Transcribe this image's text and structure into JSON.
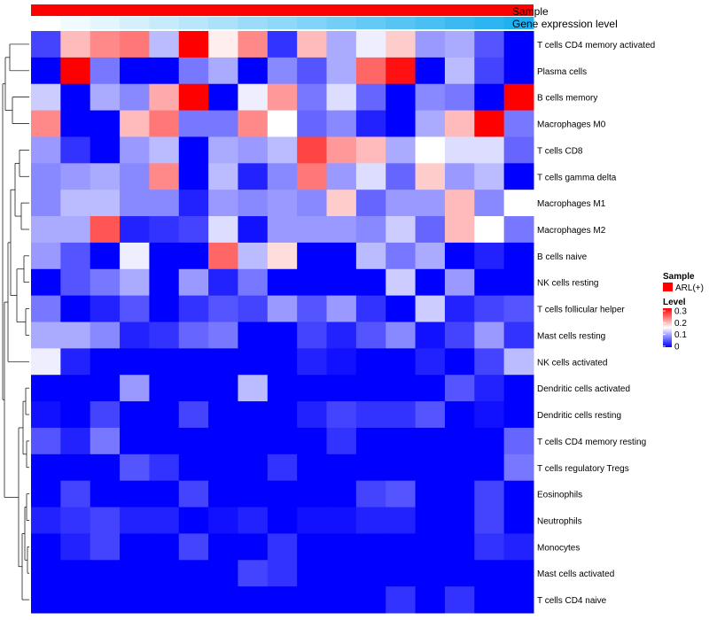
{
  "chart_data": {
    "type": "heatmap",
    "annotation_tracks": [
      {
        "name": "Sample",
        "color": "#ff0000"
      },
      {
        "name": "Gene expression level",
        "values": [
          0.0,
          0.05,
          0.1,
          0.15,
          0.2,
          0.25,
          0.3,
          0.35,
          0.4,
          0.45,
          0.5,
          0.55,
          0.6,
          0.65,
          0.7,
          0.75,
          0.8
        ],
        "color_low": "#ffffff",
        "color_high": "#1fb0f0"
      }
    ],
    "rows": [
      "T cells CD4 memory activated",
      "Plasma cells",
      "B cells memory",
      "Macrophages M0",
      "T cells CD8",
      "T cells gamma delta",
      "Macrophages M1",
      "Macrophages M2",
      "B cells naive",
      "NK cells resting",
      "T cells follicular helper",
      "Mast cells resting",
      "NK cells activated",
      "Dendritic cells activated",
      "Dendritic cells resting",
      "T cells CD4 memory resting",
      "T cells regulatory  Tregs",
      "Eosinophils",
      "Neutrophils",
      "Monocytes",
      "Mast cells activated",
      "T cells CD4 naive"
    ],
    "values": [
      [
        0.04,
        0.19,
        0.22,
        0.23,
        0.11,
        0.3,
        0.16,
        0.22,
        0.03,
        0.19,
        0.1,
        0.14,
        0.18,
        0.09,
        0.1,
        0.05,
        0.0
      ],
      [
        0.0,
        0.3,
        0.07,
        0.0,
        0.0,
        0.07,
        0.1,
        0.0,
        0.08,
        0.05,
        0.1,
        0.24,
        0.29,
        0.0,
        0.11,
        0.04,
        0.0
      ],
      [
        0.12,
        0.0,
        0.1,
        0.08,
        0.2,
        0.3,
        0.0,
        0.14,
        0.21,
        0.07,
        0.13,
        0.06,
        0.0,
        0.08,
        0.07,
        0.0,
        0.3
      ],
      [
        0.22,
        0.0,
        0.0,
        0.19,
        0.23,
        0.07,
        0.07,
        0.22,
        0.15,
        0.06,
        0.08,
        0.02,
        0.0,
        0.1,
        0.19,
        0.3,
        0.07
      ],
      [
        0.09,
        0.03,
        0.0,
        0.09,
        0.11,
        0.0,
        0.1,
        0.09,
        0.11,
        0.26,
        0.21,
        0.19,
        0.1,
        0.15,
        0.13,
        0.13,
        0.06
      ],
      [
        0.08,
        0.09,
        0.1,
        0.08,
        0.22,
        0.0,
        0.11,
        0.02,
        0.08,
        0.23,
        0.09,
        0.13,
        0.06,
        0.18,
        0.09,
        0.11,
        0.0
      ],
      [
        0.08,
        0.11,
        0.11,
        0.08,
        0.08,
        0.02,
        0.09,
        0.08,
        0.09,
        0.08,
        0.18,
        0.06,
        0.09,
        0.09,
        0.19,
        0.08,
        0.15
      ],
      [
        0.1,
        0.1,
        0.25,
        0.02,
        0.03,
        0.04,
        0.13,
        0.01,
        0.09,
        0.09,
        0.09,
        0.08,
        0.12,
        0.06,
        0.19,
        0.15,
        0.07
      ],
      [
        0.09,
        0.05,
        0.0,
        0.14,
        0.0,
        0.0,
        0.24,
        0.11,
        0.17,
        0.0,
        0.0,
        0.11,
        0.07,
        0.1,
        0.0,
        0.02,
        0.0
      ],
      [
        0.0,
        0.05,
        0.07,
        0.1,
        0.0,
        0.09,
        0.02,
        0.07,
        0.0,
        0.0,
        0.0,
        0.0,
        0.12,
        0.0,
        0.09,
        0.0,
        0.0
      ],
      [
        0.07,
        0.0,
        0.02,
        0.05,
        0.0,
        0.03,
        0.05,
        0.04,
        0.09,
        0.05,
        0.09,
        0.03,
        0.0,
        0.12,
        0.02,
        0.04,
        0.05
      ],
      [
        0.1,
        0.1,
        0.08,
        0.02,
        0.03,
        0.06,
        0.07,
        0.0,
        0.0,
        0.04,
        0.02,
        0.05,
        0.08,
        0.01,
        0.04,
        0.09,
        0.03
      ],
      [
        0.14,
        0.02,
        0.0,
        0.0,
        0.0,
        0.0,
        0.0,
        0.0,
        0.0,
        0.02,
        0.01,
        0.0,
        0.0,
        0.02,
        0.0,
        0.04,
        0.11
      ],
      [
        0.0,
        0.0,
        0.0,
        0.09,
        0.0,
        0.0,
        0.0,
        0.11,
        0.0,
        0.0,
        0.0,
        0.0,
        0.0,
        0.0,
        0.05,
        0.02,
        0.0
      ],
      [
        0.01,
        0.0,
        0.04,
        0.0,
        0.0,
        0.04,
        0.0,
        0.0,
        0.0,
        0.02,
        0.04,
        0.03,
        0.03,
        0.05,
        0.0,
        0.01,
        0.0
      ],
      [
        0.05,
        0.02,
        0.07,
        0.0,
        0.0,
        0.0,
        0.0,
        0.0,
        0.0,
        0.0,
        0.03,
        0.0,
        0.0,
        0.0,
        0.0,
        0.0,
        0.06
      ],
      [
        0.0,
        0.0,
        0.0,
        0.05,
        0.03,
        0.0,
        0.0,
        0.0,
        0.03,
        0.0,
        0.0,
        0.0,
        0.0,
        0.0,
        0.0,
        0.0,
        0.07
      ],
      [
        0.0,
        0.04,
        0.0,
        0.0,
        0.0,
        0.04,
        0.0,
        0.0,
        0.0,
        0.0,
        0.0,
        0.04,
        0.05,
        0.0,
        0.0,
        0.04,
        0.0
      ],
      [
        0.02,
        0.03,
        0.04,
        0.02,
        0.02,
        0.0,
        0.01,
        0.02,
        0.0,
        0.01,
        0.01,
        0.02,
        0.02,
        0.0,
        0.0,
        0.04,
        0.0
      ],
      [
        0.0,
        0.02,
        0.04,
        0.0,
        0.0,
        0.04,
        0.0,
        0.0,
        0.03,
        0.0,
        0.0,
        0.0,
        0.0,
        0.0,
        0.0,
        0.03,
        0.02
      ],
      [
        0.0,
        0.0,
        0.0,
        0.0,
        0.0,
        0.0,
        0.0,
        0.04,
        0.03,
        0.0,
        0.0,
        0.0,
        0.0,
        0.0,
        0.0,
        0.0,
        0.0
      ],
      [
        0.0,
        0.0,
        0.0,
        0.0,
        0.0,
        0.0,
        0.0,
        0.0,
        0.0,
        0.0,
        0.0,
        0.0,
        0.03,
        0.0,
        0.03,
        0.0,
        0.0
      ]
    ],
    "color_scale": {
      "low": "#0000ff",
      "mid": "#ffffff",
      "high": "#ff0000",
      "min": 0,
      "max": 0.3,
      "midpoint": 0.15
    },
    "legend": {
      "sample_title": "Sample",
      "sample_label": "ARL(+)",
      "sample_color": "#ff0000",
      "level_title": "Level",
      "ticks": [
        "0.3",
        "0.2",
        "0.1",
        "0"
      ]
    },
    "row_dendrogram": true,
    "legend_placement": "right"
  }
}
